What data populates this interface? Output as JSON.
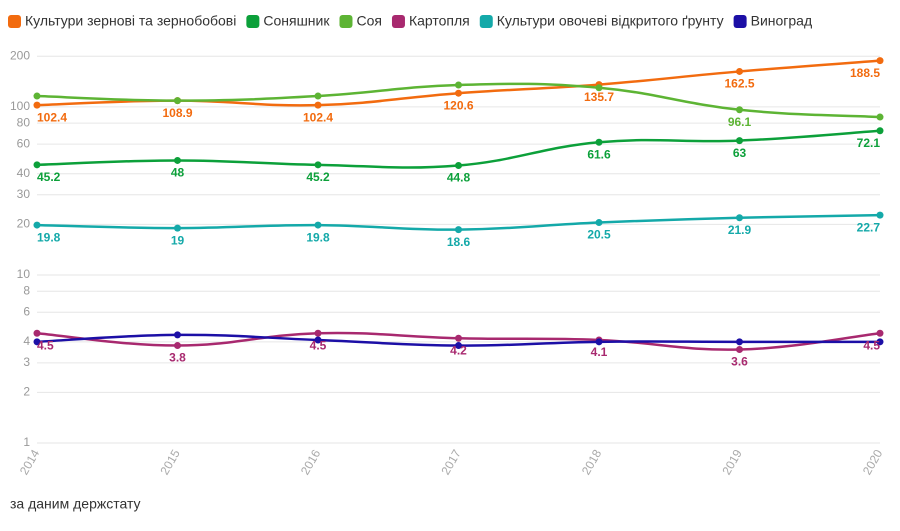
{
  "chart_data": {
    "type": "line",
    "log_scale": true,
    "grid": true,
    "source": "за даним держстату",
    "categories": [
      "2014",
      "2015",
      "2016",
      "2017",
      "2018",
      "2019",
      "2020"
    ],
    "ylim": [
      1,
      250
    ],
    "yticks": [
      1,
      2,
      3,
      4,
      6,
      8,
      10,
      20,
      30,
      40,
      60,
      80,
      100,
      200
    ],
    "series": [
      {
        "name": "Культури зернові та зернобобові",
        "color": "#f26b0f",
        "values": [
          102.4,
          108.9,
          102.4,
          120.6,
          135.7,
          162.5,
          188.5
        ],
        "value_labels": [
          "102.4",
          "108.9",
          "102.4",
          "120.6",
          "135.7",
          "162.5",
          "188.5"
        ]
      },
      {
        "name": "Соняшник",
        "color": "#0ca03a",
        "values": [
          45.2,
          48,
          45.2,
          44.8,
          61.6,
          63,
          72.1
        ],
        "value_labels": [
          "45.2",
          "48",
          "45.2",
          "44.8",
          "61.6",
          "63",
          "72.1"
        ]
      },
      {
        "name": "Соя",
        "color": "#5db434",
        "values": [
          116,
          109,
          116,
          135,
          130,
          96.1,
          87
        ],
        "value_labels": [
          null,
          null,
          null,
          null,
          null,
          "96.1",
          null
        ]
      },
      {
        "name": "Картопля",
        "color": "#a8296f",
        "values": [
          4.5,
          3.8,
          4.5,
          4.2,
          4.1,
          3.6,
          4.5
        ],
        "value_labels": [
          "4.5",
          "3.8",
          "4.5",
          "4.2",
          "4.1",
          "3.6",
          "4.5"
        ]
      },
      {
        "name": "Культури овочеві відкритого ґрунту",
        "color": "#14a9a9",
        "values": [
          19.8,
          19,
          19.8,
          18.6,
          20.5,
          21.9,
          22.7
        ],
        "value_labels": [
          "19.8",
          "19",
          "19.8",
          "18.6",
          "20.5",
          "21.9",
          "22.7"
        ]
      },
      {
        "name": "Виноград",
        "color": "#1c0fa6",
        "values": [
          4,
          4.4,
          4.1,
          3.8,
          4,
          4,
          4
        ],
        "value_labels": [
          null,
          null,
          null,
          null,
          null,
          null,
          null
        ]
      }
    ]
  }
}
